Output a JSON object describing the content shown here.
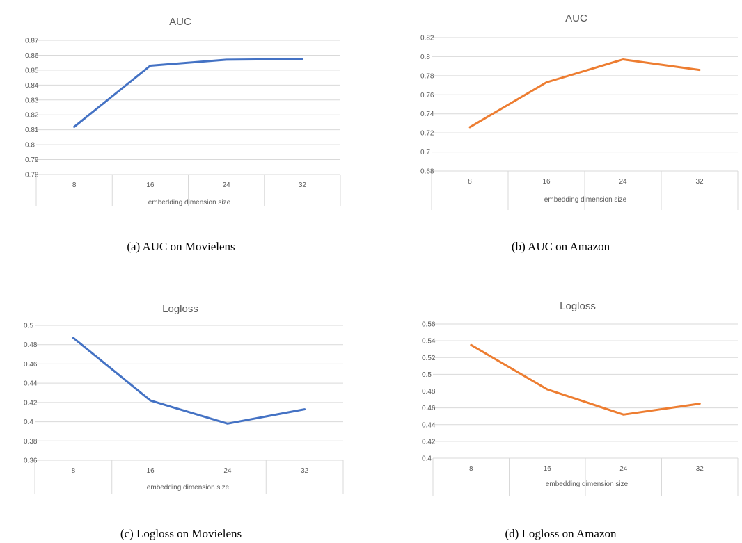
{
  "chart_data": [
    {
      "type": "line",
      "title": "AUC",
      "xlabel": "embedding dimension size",
      "ylabel": "",
      "categories": [
        "8",
        "16",
        "24",
        "32"
      ],
      "series": [
        {
          "values": [
            0.812,
            0.853,
            0.857,
            0.8575
          ],
          "color": "#4472C4"
        }
      ],
      "ylim": [
        0.78,
        0.87
      ],
      "yticks": [
        "0.87",
        "0.86",
        "0.85",
        "0.84",
        "0.83",
        "0.82",
        "0.81",
        "0.8",
        "0.79",
        "0.78"
      ],
      "grid": true,
      "caption": "(a)  AUC on Movielens"
    },
    {
      "type": "line",
      "title": "AUC",
      "xlabel": "embedding dimension size",
      "ylabel": "",
      "categories": [
        "8",
        "16",
        "24",
        "32"
      ],
      "series": [
        {
          "values": [
            0.726,
            0.773,
            0.797,
            0.786
          ],
          "color": "#ED7D31"
        }
      ],
      "ylim": [
        0.68,
        0.82
      ],
      "yticks": [
        "0.82",
        "0.8",
        "0.78",
        "0.76",
        "0.74",
        "0.72",
        "0.7",
        "0.68"
      ],
      "grid": true,
      "caption": "(b)  AUC on Amazon"
    },
    {
      "type": "line",
      "title": "Logloss",
      "xlabel": "embedding dimension size",
      "ylabel": "",
      "categories": [
        "8",
        "16",
        "24",
        "32"
      ],
      "series": [
        {
          "values": [
            0.487,
            0.422,
            0.398,
            0.413
          ],
          "color": "#4472C4"
        }
      ],
      "ylim": [
        0.36,
        0.5
      ],
      "yticks": [
        "0.5",
        "0.48",
        "0.46",
        "0.44",
        "0.42",
        "0.4",
        "0.38",
        "0.36"
      ],
      "grid": true,
      "caption": "(c)  Logloss on Movielens"
    },
    {
      "type": "line",
      "title": "Logloss",
      "xlabel": "embedding dimension size",
      "ylabel": "",
      "categories": [
        "8",
        "16",
        "24",
        "32"
      ],
      "series": [
        {
          "values": [
            0.535,
            0.482,
            0.452,
            0.465
          ],
          "color": "#ED7D31"
        }
      ],
      "ylim": [
        0.4,
        0.56
      ],
      "yticks": [
        "0.56",
        "0.54",
        "0.52",
        "0.5",
        "0.48",
        "0.46",
        "0.44",
        "0.42",
        "0.4"
      ],
      "grid": true,
      "caption": "(d)  Logloss on Amazon"
    }
  ]
}
